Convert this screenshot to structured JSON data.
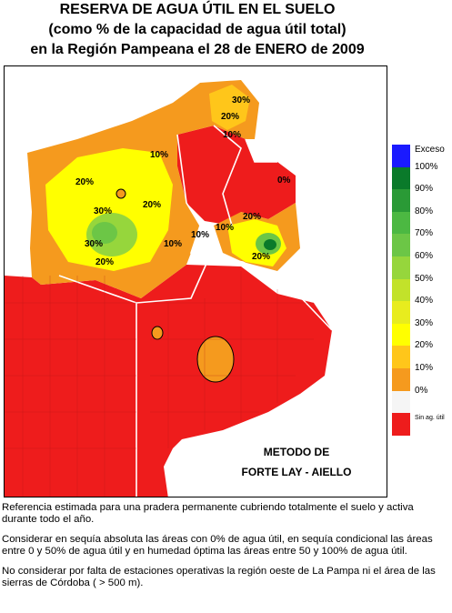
{
  "title": {
    "line1": "RESERVA DE AGUA ÚTIL EN EL SUELO",
    "line2": "(como % de la capacidad de agua útil total)",
    "line3": "en la Región Pampeana el 28 de ENERO de 2009"
  },
  "method": {
    "line1": "METODO DE",
    "line2": "FORTE LAY - AIELLO"
  },
  "legend": [
    {
      "label": "Exceso",
      "color": "#1a1aff"
    },
    {
      "label": "100%",
      "color": "#0a7a2a"
    },
    {
      "label": "90%",
      "color": "#2a9a36"
    },
    {
      "label": "80%",
      "color": "#4cb842"
    },
    {
      "label": "70%",
      "color": "#6cc646"
    },
    {
      "label": "60%",
      "color": "#96d63c"
    },
    {
      "label": "50%",
      "color": "#c2e22a"
    },
    {
      "label": "40%",
      "color": "#e8ec1e"
    },
    {
      "label": "30%",
      "color": "#ffff00"
    },
    {
      "label": "20%",
      "color": "#ffc61a"
    },
    {
      "label": "10%",
      "color": "#f59a1e"
    },
    {
      "label": "0%",
      "color": "#f5f5f5"
    },
    {
      "label": "Sin ag. útil",
      "color": "#ee1c1c"
    }
  ],
  "contour_labels": [
    "30%",
    "20%",
    "10%",
    "10%",
    "20%",
    "20%",
    "30%",
    "30%",
    "20%",
    "10%",
    "20%",
    "10%",
    "10%",
    "20%",
    "0%"
  ],
  "notes": {
    "p1": "Referencia estimada para una pradera permanente cubriendo totalmente el suelo y activa durante todo el año.",
    "p2": "Considerar en sequía absoluta las áreas con 0% de agua útil, en sequía condicional las áreas entre 0 y 50% de agua útil y en humedad óptima las áreas entre 50 y 100% de agua útil.",
    "p3": "No considerar por falta de estaciones operativas la región oeste de La Pampa ni el área de las sierras de Córdoba ( > 500 m)."
  }
}
